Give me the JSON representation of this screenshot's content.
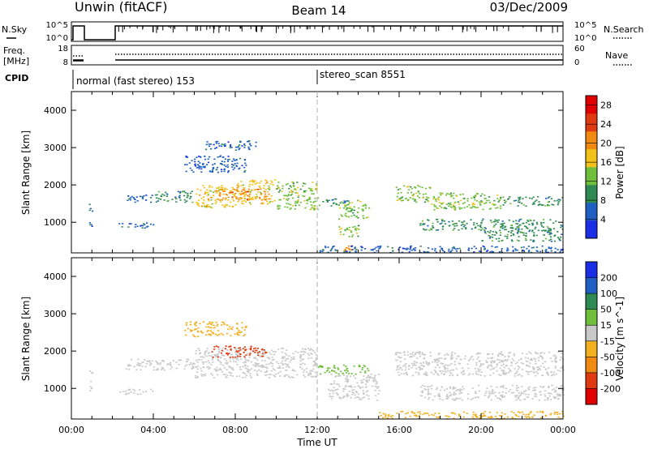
{
  "header": {
    "station": "Unwin (fitACF)",
    "beam": "Beam 14",
    "date": "03/Dec/2009"
  },
  "top_panels": {
    "nsky": {
      "label": "N.Sky",
      "ticks": [
        "10^5",
        "10^0"
      ],
      "right_label": "N.Search",
      "right_ticks": [
        "10^5",
        "10^0"
      ]
    },
    "freq": {
      "label_line1": "Freq.",
      "label_line2": "[MHz]",
      "ticks": [
        "18",
        "8"
      ],
      "right_label": "Nave",
      "right_ticks": [
        "60",
        "0"
      ]
    },
    "cpid": {
      "label": "CPID",
      "programs": [
        "normal (fast stereo) 153",
        "stereo_scan 8551"
      ]
    }
  },
  "chart_data": [
    {
      "type": "heatmap",
      "title": "",
      "xlabel": "",
      "ylabel": "Slant Range [km]",
      "xlim": [
        0,
        24
      ],
      "ylim": [
        180,
        4500
      ],
      "y_ticks": [
        "1000",
        "2000",
        "3000",
        "4000"
      ],
      "colorbar": {
        "label": "Power [dB]",
        "ticks": [
          "4",
          "8",
          "12",
          "16",
          "20",
          "24",
          "28"
        ],
        "range": [
          0,
          30
        ],
        "colors": [
          "#1a2ee6",
          "#1f5fc2",
          "#2e8a50",
          "#6fbf3c",
          "#f2c21a",
          "#f08a10",
          "#e03a10",
          "#e00000"
        ]
      },
      "echo_regions": [
        {
          "t0": 0.85,
          "t1": 1.0,
          "r0": 900,
          "r1": 1500,
          "value": 6
        },
        {
          "t0": 2.6,
          "t1": 4.0,
          "r0": 1550,
          "r1": 1750,
          "value": 6
        },
        {
          "t0": 2.3,
          "t1": 4.0,
          "r0": 850,
          "r1": 1000,
          "value": 5
        },
        {
          "t0": 4.0,
          "t1": 6.0,
          "r0": 1550,
          "r1": 1850,
          "value": 10
        },
        {
          "t0": 6.0,
          "t1": 8.0,
          "r0": 1400,
          "r1": 2000,
          "value": 16
        },
        {
          "t0": 8.0,
          "t1": 10.0,
          "r0": 1500,
          "r1": 2150,
          "value": 18
        },
        {
          "t0": 10.0,
          "t1": 12.0,
          "r0": 1350,
          "r1": 2100,
          "value": 14
        },
        {
          "t0": 6.8,
          "t1": 9.6,
          "r0": 1600,
          "r1": 1900,
          "value": 21
        },
        {
          "t0": 5.5,
          "t1": 8.5,
          "r0": 2350,
          "r1": 2800,
          "value": 6
        },
        {
          "t0": 6.5,
          "t1": 9.0,
          "r0": 2950,
          "r1": 3200,
          "value": 5
        },
        {
          "t0": 12.0,
          "t1": 13.5,
          "r0": 1450,
          "r1": 1650,
          "value": 8
        },
        {
          "t0": 13.0,
          "t1": 14.5,
          "r0": 1100,
          "r1": 1600,
          "value": 14
        },
        {
          "t0": 13.0,
          "t1": 14.0,
          "r0": 600,
          "r1": 950,
          "value": 12
        },
        {
          "t0": 13.2,
          "t1": 13.8,
          "r0": 250,
          "r1": 500,
          "value": 20
        },
        {
          "t0": 15.8,
          "t1": 17.5,
          "r0": 1550,
          "r1": 2000,
          "value": 12
        },
        {
          "t0": 17.5,
          "t1": 21.0,
          "r0": 1350,
          "r1": 1800,
          "value": 14
        },
        {
          "t0": 21.0,
          "t1": 24.0,
          "r0": 1450,
          "r1": 1700,
          "value": 9
        },
        {
          "t0": 17.0,
          "t1": 24.0,
          "r0": 800,
          "r1": 1100,
          "value": 8
        },
        {
          "t0": 20.0,
          "t1": 24.0,
          "r0": 500,
          "r1": 800,
          "value": 10
        },
        {
          "t0": 12.0,
          "t1": 24.0,
          "r0": 200,
          "r1": 380,
          "value": 6
        }
      ]
    },
    {
      "type": "heatmap",
      "title": "",
      "xlabel": "Time UT",
      "ylabel": "Slant Range [km]",
      "xlim": [
        0,
        24
      ],
      "ylim": [
        180,
        4500
      ],
      "x_ticks": [
        "00:00",
        "04:00",
        "08:00",
        "12:00",
        "16:00",
        "20:00",
        "00:00"
      ],
      "y_ticks": [
        "1000",
        "2000",
        "3000",
        "4000"
      ],
      "colorbar": {
        "label": "Velocity [m s^-1]",
        "ticks": [
          "200",
          "100",
          "50",
          "15",
          "-15",
          "-50",
          "-100",
          "-200"
        ],
        "colors": [
          "#1a2ee6",
          "#1f5fc2",
          "#2e8a50",
          "#6fbf3c",
          "#c8c8c8",
          "#f2b020",
          "#f08a10",
          "#e03a10",
          "#e00000"
        ]
      },
      "echo_regions": [
        {
          "t0": 0.85,
          "t1": 1.0,
          "r0": 900,
          "r1": 1500,
          "value": -15
        },
        {
          "t0": 2.6,
          "t1": 6.0,
          "r0": 1500,
          "r1": 1800,
          "value": -5
        },
        {
          "t0": 2.3,
          "t1": 4.0,
          "r0": 850,
          "r1": 1000,
          "value": -5
        },
        {
          "t0": 6.0,
          "t1": 12.0,
          "r0": 1300,
          "r1": 2100,
          "value": -5
        },
        {
          "t0": 6.8,
          "t1": 9.5,
          "r0": 1850,
          "r1": 2150,
          "value": -150
        },
        {
          "t0": 5.5,
          "t1": 8.5,
          "r0": 2400,
          "r1": 2800,
          "value": -30
        },
        {
          "t0": 12.0,
          "t1": 14.5,
          "r0": 1400,
          "r1": 1650,
          "value": 30
        },
        {
          "t0": 12.5,
          "t1": 15.0,
          "r0": 700,
          "r1": 1400,
          "value": -5
        },
        {
          "t0": 15.8,
          "t1": 24.0,
          "r0": 1350,
          "r1": 2000,
          "value": -5
        },
        {
          "t0": 17.0,
          "t1": 24.0,
          "r0": 700,
          "r1": 1100,
          "value": -5
        },
        {
          "t0": 15.0,
          "t1": 24.0,
          "r0": 200,
          "r1": 400,
          "value": -40
        }
      ]
    }
  ]
}
